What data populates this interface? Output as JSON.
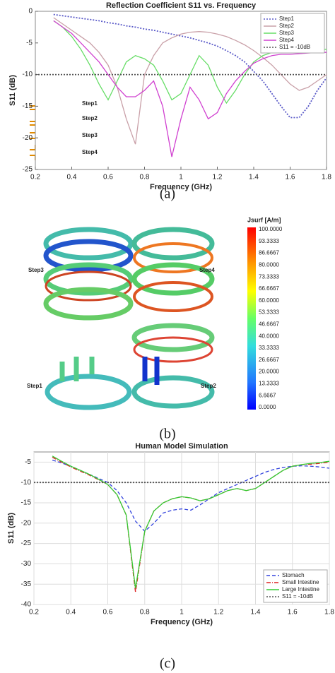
{
  "chart_data": [
    {
      "type": "line",
      "title": "Reflection Coefficient S11 vs. Frequency",
      "xlabel": "Frequency (GHz)",
      "ylabel": "S11 (dB)",
      "xlim": [
        0.2,
        1.8
      ],
      "xticks": [
        0.2,
        0.4,
        0.6,
        0.8,
        1,
        1.2,
        1.4,
        1.6,
        1.8
      ],
      "ylim": [
        -25,
        0
      ],
      "yticks": [
        -25,
        -20,
        -15,
        -10,
        -5,
        0
      ],
      "grid": false,
      "legend": "upper right",
      "x": [
        0.3,
        0.35,
        0.4,
        0.45,
        0.5,
        0.55,
        0.6,
        0.65,
        0.7,
        0.75,
        0.8,
        0.85,
        0.9,
        0.95,
        1.0,
        1.05,
        1.1,
        1.15,
        1.2,
        1.25,
        1.3,
        1.35,
        1.4,
        1.45,
        1.5,
        1.55,
        1.6,
        1.65,
        1.7,
        1.75,
        1.8
      ],
      "series": [
        {
          "name": "Step1",
          "color": "#5a5ac8",
          "linestyle": "dotted",
          "values": [
            -0.5,
            -0.7,
            -0.9,
            -1.1,
            -1.3,
            -1.5,
            -1.8,
            -2,
            -2.3,
            -2.5,
            -2.8,
            -3,
            -3.3,
            -3.6,
            -3.9,
            -4.2,
            -4.6,
            -5,
            -5.5,
            -6.2,
            -7,
            -8,
            -9.5,
            -11,
            -13,
            -15,
            -16.8,
            -16.8,
            -15,
            -12.5,
            -10.5
          ]
        },
        {
          "name": "Step2",
          "color": "#c9a0a8",
          "linestyle": "solid",
          "values": [
            -1,
            -2,
            -3,
            -4,
            -5,
            -6.5,
            -8.5,
            -12,
            -17,
            -21,
            -10,
            -7,
            -5,
            -4.2,
            -3.6,
            -3.3,
            -3.2,
            -3.3,
            -3.6,
            -4,
            -4.6,
            -5.3,
            -6.2,
            -7.3,
            -8.5,
            -10,
            -11.5,
            -12.5,
            -12,
            -11,
            -10
          ]
        },
        {
          "name": "Step3",
          "color": "#66dd66",
          "linestyle": "solid",
          "values": [
            -1.5,
            -2.5,
            -4,
            -6,
            -8.5,
            -11.5,
            -14,
            -11,
            -8,
            -7,
            -7.5,
            -8.5,
            -11,
            -14,
            -13,
            -10,
            -7,
            -8.5,
            -12,
            -14.5,
            -12.5,
            -10,
            -8,
            -7,
            -6.5,
            -6.3,
            -6.2,
            -6.1,
            -6,
            -6,
            -6
          ]
        },
        {
          "name": "Step4",
          "color": "#d040d0",
          "linestyle": "solid",
          "values": [
            -1.5,
            -2.5,
            -3.5,
            -5,
            -6.5,
            -8,
            -10,
            -12,
            -13.5,
            -13.5,
            -12.5,
            -11,
            -15,
            -23,
            -17,
            -12,
            -14,
            -17,
            -16,
            -13,
            -11,
            -9.5,
            -8.2,
            -7.5,
            -7,
            -6.8,
            -6.8,
            -6.7,
            -6.6,
            -6.5,
            -6.5
          ]
        },
        {
          "name": "S11 = -10dB",
          "color": "#555555",
          "linestyle": "dotted",
          "x": [
            0.2,
            1.8
          ],
          "values": [
            -10,
            -10
          ]
        }
      ],
      "inset_labels": [
        "Step1",
        "Step2",
        "Step3",
        "Step4"
      ]
    },
    {
      "type": "line",
      "title": "Human Model Simulation",
      "xlabel": "Frequency (GHz)",
      "ylabel": "S11 (dB)",
      "xlim": [
        0.2,
        1.8
      ],
      "xticks": [
        0.2,
        0.4,
        0.6,
        0.8,
        1,
        1.2,
        1.4,
        1.6,
        1.8
      ],
      "ylim": [
        -40,
        -2.5
      ],
      "yticks": [
        -40,
        -35,
        -30,
        -25,
        -20,
        -15,
        -10,
        -5
      ],
      "grid": true,
      "legend": "lower right",
      "x": [
        0.3,
        0.35,
        0.4,
        0.45,
        0.5,
        0.55,
        0.6,
        0.65,
        0.7,
        0.75,
        0.8,
        0.85,
        0.9,
        0.95,
        1.0,
        1.05,
        1.1,
        1.15,
        1.2,
        1.25,
        1.3,
        1.35,
        1.4,
        1.45,
        1.5,
        1.55,
        1.6,
        1.65,
        1.7,
        1.75,
        1.8
      ],
      "series": [
        {
          "name": "Stomach",
          "color": "#3344dd",
          "linestyle": "dashed",
          "values": [
            -4.5,
            -5.2,
            -6,
            -7,
            -8,
            -9,
            -10,
            -12,
            -15,
            -19.5,
            -22,
            -20,
            -17.5,
            -16.8,
            -16.5,
            -16.8,
            -15.5,
            -14,
            -12.5,
            -11.5,
            -10.5,
            -9.5,
            -8.5,
            -7.5,
            -6.8,
            -6.3,
            -6,
            -5.9,
            -6,
            -6.2,
            -6.5
          ]
        },
        {
          "name": "Small Intestine",
          "color": "#dd2222",
          "linestyle": "dashdot",
          "values": [
            -3.8,
            -5,
            -6.2,
            -7.2,
            -8.2,
            -9.3,
            -10.5,
            -13,
            -18,
            -37,
            -22,
            -17,
            -15,
            -14,
            -13.5,
            -13.8,
            -14.5,
            -14,
            -13,
            -12,
            -11.5,
            -12,
            -11.5,
            -10,
            -8.5,
            -7,
            -6,
            -5.6,
            -5.5,
            -5.3,
            -5
          ]
        },
        {
          "name": "Large Intestine",
          "color": "#33cc33",
          "linestyle": "solid",
          "values": [
            -3.5,
            -4.8,
            -6,
            -7,
            -8,
            -9.2,
            -10.5,
            -13,
            -18,
            -36,
            -22,
            -17,
            -15,
            -14,
            -13.5,
            -13.8,
            -14.5,
            -14,
            -13,
            -12,
            -11.5,
            -12,
            -11.5,
            -10,
            -8.5,
            -7,
            -6,
            -5.6,
            -5.3,
            -5.1,
            -4.8
          ]
        },
        {
          "name": "S11 = -10dB",
          "color": "#555555",
          "linestyle": "dotted",
          "x": [
            0.2,
            1.8
          ],
          "values": [
            -10,
            -10
          ]
        }
      ]
    }
  ],
  "figure_b": {
    "labels": [
      "Step3",
      "Step4",
      "Step1",
      "Step2"
    ],
    "colorbar": {
      "title": "Jsurf [A/m]",
      "ticks": [
        "100.0000",
        "93.3333",
        "86.6667",
        "80.0000",
        "73.3333",
        "66.6667",
        "60.0000",
        "53.3333",
        "46.6667",
        "40.0000",
        "33.3333",
        "26.6667",
        "20.0000",
        "13.3333",
        "6.6667",
        "0.0000"
      ]
    }
  },
  "captions": [
    "(a)",
    "(b)",
    "(c)"
  ]
}
